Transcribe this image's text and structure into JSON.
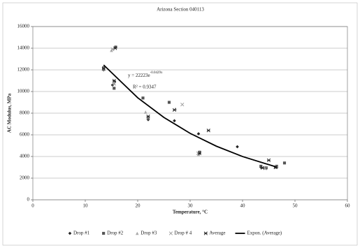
{
  "chart_data": {
    "type": "scatter",
    "title": "Arizona Section 040113",
    "x_label": "Temperature, °C",
    "y_label": "AC Modulus, MPa",
    "xlim": [
      0,
      60
    ],
    "xticks": [
      0,
      10,
      20,
      30,
      40,
      50,
      60
    ],
    "ylim": [
      0,
      16000
    ],
    "yticks": [
      0,
      2000,
      4000,
      6000,
      8000,
      10000,
      12000,
      14000,
      16000
    ],
    "grid": true,
    "legend": "bottom",
    "series": [
      {
        "name": "Drop #1",
        "color": "#222222",
        "marker": "diamond",
        "x": [
          13.5,
          15.2,
          15.6,
          15.8,
          22,
          27,
          31.6,
          31.8,
          39,
          43.5,
          44.5,
          46.5
        ],
        "values": [
          12000,
          10600,
          10900,
          14100,
          7400,
          7300,
          6100,
          4300,
          4900,
          3000,
          2900,
          3000
        ]
      },
      {
        "name": "Drop #2",
        "color": "#555555",
        "marker": "square",
        "x": [
          13.5,
          15.5,
          15.8,
          21,
          22,
          26,
          31.8,
          43.5,
          44.5,
          46.5,
          48
        ],
        "values": [
          12200,
          10300,
          14100,
          9400,
          7500,
          9000,
          4400,
          3100,
          2950,
          3100,
          3400
        ]
      },
      {
        "name": "Drop #3",
        "color": "#aaaaaa",
        "marker": "triangle",
        "x": [
          13.5,
          15,
          15.5,
          21.5,
          27.2,
          31.6,
          44,
          46.2
        ],
        "values": [
          12100,
          13800,
          10800,
          8100,
          8400,
          4200,
          3000,
          3000
        ]
      },
      {
        "name": "Drop # 4",
        "color": "#999999",
        "marker": "x",
        "x": [
          15.2,
          15.5,
          22,
          28.5,
          31.5,
          44.3,
          46.5
        ],
        "values": [
          13900,
          10700,
          7600,
          8800,
          4300,
          2900,
          3050
        ]
      },
      {
        "name": "Average",
        "color": "#222222",
        "marker": "asterisk",
        "x": [
          13.5,
          15.5,
          15.7,
          22,
          27,
          33.5,
          31.8,
          45,
          43.8,
          46.3
        ],
        "values": [
          12100,
          11000,
          14000,
          7700,
          8300,
          6400,
          4300,
          3650,
          2950,
          3000
        ]
      },
      {
        "name": "Expon. (Average)",
        "color": "#000000",
        "marker": "line",
        "x": [
          13.5,
          20,
          25,
          30,
          35,
          40,
          46.5
        ],
        "values": [
          12454,
          9423,
          7605,
          6136,
          4952,
          3996,
          3022
        ]
      }
    ],
    "annotations": {
      "equation": "y = 22223e",
      "equation_exponent": "-0.0429x",
      "r_squared": "R² = 0.9347"
    }
  }
}
